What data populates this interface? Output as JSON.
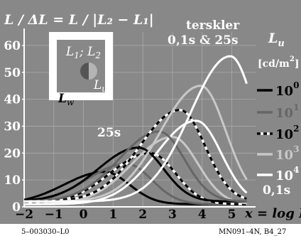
{
  "chart_data": {
    "type": "line",
    "title": "L / ΔL = L / |L₂ − L₁|",
    "subtitle": "terskler 0,1s & 25s",
    "annotations": {
      "long_duration": "25s",
      "short_duration": "0,1s",
      "terskler": "terskler",
      "durations": "0,1s & 25s"
    },
    "xlabel": "x = log L",
    "ylabel": "",
    "xlim": [
      -2,
      5.8
    ],
    "ylim": [
      0,
      65
    ],
    "xticks": [
      "−2",
      "−1",
      "0",
      "1",
      "2",
      "3",
      "4",
      "5"
    ],
    "yticks": [
      "0",
      "10",
      "20",
      "30",
      "40",
      "50",
      "60"
    ],
    "grid": true,
    "legend_placement": "right",
    "legend_title": "L",
    "legend_title_sub": "u",
    "legend_unit": "[cd/m",
    "legend_unit_sup": "2",
    "legend_unit_close": "]",
    "inset_labels": {
      "l1_l2": "L1; L2",
      "lu": "Lu",
      "lw": "Lw"
    },
    "series": [
      {
        "name": "10^0",
        "base": "10",
        "exp": "0",
        "color": "#000000",
        "dash": false,
        "duration": "25s",
        "peak_x": 1.85,
        "peak_y": 22,
        "floor": 2
      },
      {
        "name": "10^1",
        "base": "10",
        "exp": "1",
        "color": "#666666",
        "dash": false,
        "duration": "25s",
        "peak_x": 2.55,
        "peak_y": 28,
        "floor": 2
      },
      {
        "name": "10^2",
        "base": "10",
        "exp": "2",
        "color": "#000000",
        "dash": true,
        "duration": "25s",
        "peak_x": 3.25,
        "peak_y": 36,
        "floor": 2
      },
      {
        "name": "10^3",
        "base": "10",
        "exp": "3",
        "color": "#c8c8c8",
        "dash": false,
        "duration": "25s",
        "peak_x": 3.95,
        "peak_y": 45,
        "floor": 2
      },
      {
        "name": "10^4",
        "base": "10",
        "exp": "4",
        "color": "#ffffff",
        "dash": false,
        "duration": "25s",
        "peak_x": 4.95,
        "peak_y": 56,
        "floor": 2
      },
      {
        "name": "10^0",
        "base": "10",
        "exp": "0",
        "color": "#000000",
        "dash": false,
        "duration": "0,1s",
        "peak_x": 0.7,
        "peak_y": 13,
        "floor": 1
      },
      {
        "name": "10^1",
        "base": "10",
        "exp": "1",
        "color": "#666666",
        "dash": false,
        "duration": "0,1s",
        "peak_x": 1.45,
        "peak_y": 16,
        "floor": 1
      },
      {
        "name": "10^2",
        "base": "10",
        "exp": "2",
        "color": "#000000",
        "dash": true,
        "duration": "0,1s",
        "peak_x": 2.25,
        "peak_y": 20,
        "floor": 1
      },
      {
        "name": "10^3",
        "base": "10",
        "exp": "3",
        "color": "#c8c8c8",
        "dash": false,
        "duration": "0,1s",
        "peak_x": 3.0,
        "peak_y": 26,
        "floor": 1
      },
      {
        "name": "10^4",
        "base": "10",
        "exp": "4",
        "color": "#ffffff",
        "dash": false,
        "duration": "0,1s",
        "peak_x": 3.8,
        "peak_y": 32,
        "floor": 1
      }
    ],
    "colors": {
      "background": "#888888",
      "grid": "#aaaaaa",
      "text": "#ffffff",
      "ink": "#000000"
    }
  },
  "footer": {
    "left": "5–003030–L0",
    "right": "MN091–4N, B4_27"
  }
}
